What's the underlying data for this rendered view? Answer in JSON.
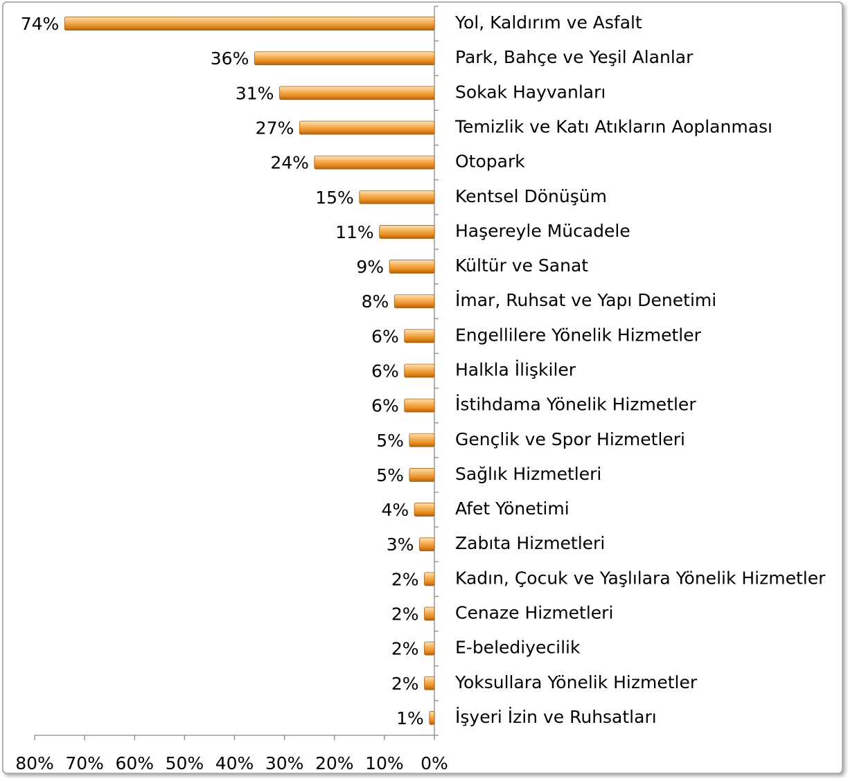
{
  "chart_data": {
    "type": "hbar",
    "categories": [
      "Yol, Kaldırım ve Asfalt",
      "Park, Bahçe ve Yeşil Alanlar",
      "Sokak Hayvanları",
      "Temizlik ve Katı Atıkların Aoplanması",
      "Otopark",
      "Kentsel Dönüşüm",
      "Haşereyle Mücadele",
      "Kültür ve Sanat",
      "İmar, Ruhsat ve Yapı Denetimi",
      "Engellilere Yönelik Hizmetler",
      "Halkla İlişkiler",
      "İstihdama Yönelik Hizmetler",
      "Gençlik ve Spor Hizmetleri",
      "Sağlık Hizmetleri",
      "Afet Yönetimi",
      "Zabıta Hizmetleri",
      "Kadın, Çocuk ve Yaşlılara Yönelik Hizmetler",
      "Cenaze Hizmetleri",
      "E-belediyecilik",
      "Yoksullara Yönelik Hizmetler",
      "İşyeri İzin ve Ruhsatları"
    ],
    "values": [
      74,
      36,
      31,
      27,
      24,
      15,
      11,
      9,
      8,
      6,
      6,
      6,
      5,
      5,
      4,
      3,
      2,
      2,
      2,
      2,
      1
    ],
    "value_labels": [
      "74%",
      "36%",
      "31%",
      "27%",
      "24%",
      "15%",
      "11%",
      "9%",
      "8%",
      "6%",
      "6%",
      "6%",
      "5%",
      "5%",
      "4%",
      "3%",
      "2%",
      "2%",
      "2%",
      "2%",
      "1%"
    ],
    "color": "#f0a030",
    "xlim": [
      80,
      0
    ],
    "xticks": [
      {
        "value": 80,
        "label": "80%"
      },
      {
        "value": 70,
        "label": "70%"
      },
      {
        "value": 60,
        "label": "60%"
      },
      {
        "value": 50,
        "label": "50%"
      },
      {
        "value": 40,
        "label": "40%"
      },
      {
        "value": 30,
        "label": "30%"
      },
      {
        "value": 20,
        "label": "20%"
      },
      {
        "value": 10,
        "label": "10%"
      },
      {
        "value": 0,
        "label": "0%"
      }
    ],
    "grid": false
  }
}
